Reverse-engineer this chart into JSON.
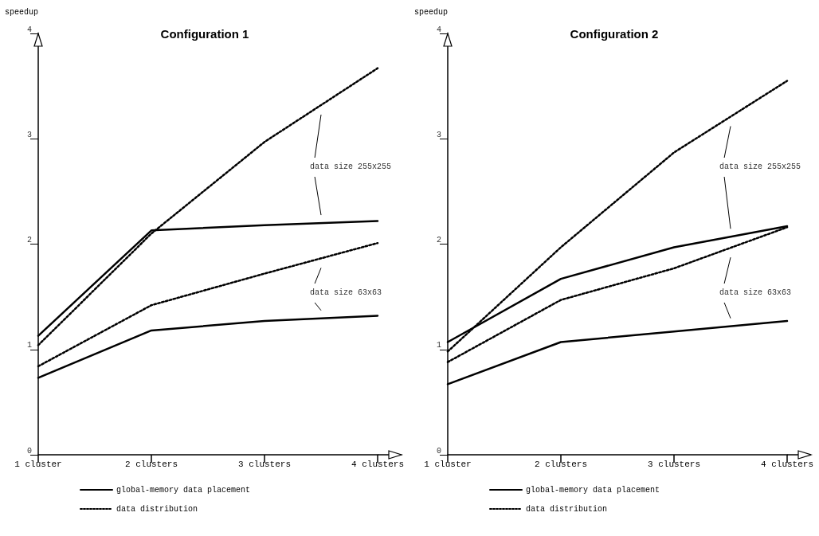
{
  "chart_data": [
    {
      "type": "line",
      "title": "Configuration 1",
      "ylabel": "speedup",
      "categories": [
        "1 cluster",
        "2 clusters",
        "3 clusters",
        "4 clusters"
      ],
      "ylim": [
        0,
        4
      ],
      "yticks": [
        0,
        1,
        2,
        3,
        4
      ],
      "grid": false,
      "legend": "bottom",
      "marker": "none",
      "annotations": [
        "data size 255x255",
        "data size 63x63"
      ],
      "series": [
        {
          "name": "global-memory data placement",
          "color": "#000000",
          "line_style": "solid",
          "values": [
            1.13,
            2.13,
            2.18,
            2.22
          ]
        },
        {
          "name": "data distribution",
          "color": "#000000",
          "line_style": "dotted",
          "values": [
            1.04,
            2.1,
            2.97,
            3.67
          ]
        },
        {
          "color": "#000000",
          "line_style": "solid",
          "values": [
            0.73,
            1.18,
            1.27,
            1.32
          ]
        },
        {
          "color": "#000000",
          "line_style": "dotted",
          "values": [
            0.84,
            1.42,
            1.72,
            2.01
          ]
        }
      ]
    },
    {
      "type": "line",
      "title": "Configuration 2",
      "ylabel": "speedup",
      "categories": [
        "1 cluster",
        "2 clusters",
        "3 clusters",
        "4 clusters"
      ],
      "ylim": [
        0,
        4
      ],
      "yticks": [
        0,
        1,
        2,
        3,
        4
      ],
      "grid": false,
      "legend": "bottom",
      "marker": "none",
      "annotations": [
        "data size 255x255",
        "data size 63x63"
      ],
      "series": [
        {
          "name": "global-memory data placement",
          "color": "#000000",
          "line_style": "solid",
          "values": [
            1.07,
            1.67,
            1.97,
            2.17
          ]
        },
        {
          "name": "data distribution",
          "color": "#000000",
          "line_style": "dotted",
          "values": [
            0.98,
            1.97,
            2.87,
            3.55
          ]
        },
        {
          "color": "#000000",
          "line_style": "solid",
          "values": [
            0.67,
            1.07,
            1.17,
            1.27
          ]
        },
        {
          "color": "#000000",
          "line_style": "dotted",
          "values": [
            0.88,
            1.47,
            1.77,
            2.16
          ]
        }
      ]
    }
  ]
}
